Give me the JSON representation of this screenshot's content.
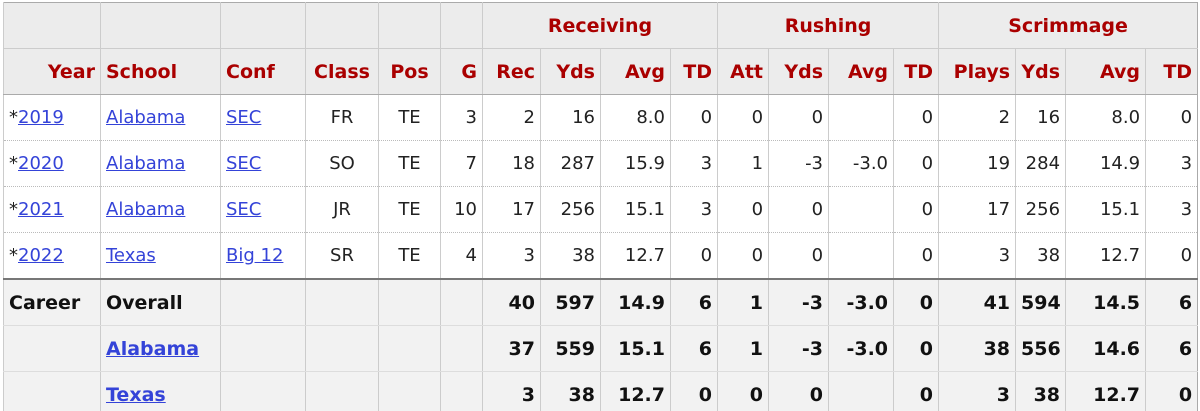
{
  "table": {
    "groups": [
      "Receiving",
      "Rushing",
      "Scrimmage"
    ],
    "columns": [
      "Year",
      "School",
      "Conf",
      "Class",
      "Pos",
      "G",
      "Rec",
      "Yds",
      "Avg",
      "TD",
      "Att",
      "Yds",
      "Avg",
      "TD",
      "Plays",
      "Yds",
      "Avg",
      "TD"
    ],
    "rows": [
      {
        "marker": "*",
        "year": "2019",
        "cells": [
          "Alabama",
          "SEC",
          "FR",
          "TE",
          "3",
          "2",
          "16",
          "8.0",
          "0",
          "0",
          "0",
          null,
          "0",
          "2",
          "16",
          "8.0",
          "0"
        ]
      },
      {
        "marker": "*",
        "year": "2020",
        "cells": [
          "Alabama",
          "SEC",
          "SO",
          "TE",
          "7",
          "18",
          "287",
          "15.9",
          "3",
          "1",
          "-3",
          "-3.0",
          "0",
          "19",
          "284",
          "14.9",
          "3"
        ]
      },
      {
        "marker": "*",
        "year": "2021",
        "cells": [
          "Alabama",
          "SEC",
          "JR",
          "TE",
          "10",
          "17",
          "256",
          "15.1",
          "3",
          "0",
          "0",
          null,
          "0",
          "17",
          "256",
          "15.1",
          "3"
        ]
      },
      {
        "marker": "*",
        "year": "2022",
        "cells": [
          "Texas",
          "Big 12",
          "SR",
          "TE",
          "4",
          "3",
          "38",
          "12.7",
          "0",
          "0",
          "0",
          null,
          "0",
          "3",
          "38",
          "12.7",
          "0"
        ]
      }
    ],
    "footer": [
      [
        "Career",
        "Overall",
        null,
        null,
        null,
        null,
        "40",
        "597",
        "14.9",
        "6",
        "1",
        "-3",
        "-3.0",
        "0",
        "41",
        "594",
        "14.5",
        "6"
      ],
      [
        null,
        "Alabama",
        null,
        null,
        null,
        null,
        "37",
        "559",
        "15.1",
        "6",
        "1",
        "-3",
        "-3.0",
        "0",
        "38",
        "556",
        "14.6",
        "6"
      ],
      [
        null,
        "Texas",
        null,
        null,
        null,
        null,
        "3",
        "38",
        "12.7",
        "0",
        "0",
        "0",
        null,
        "0",
        "3",
        "38",
        "12.7",
        "0"
      ]
    ]
  }
}
